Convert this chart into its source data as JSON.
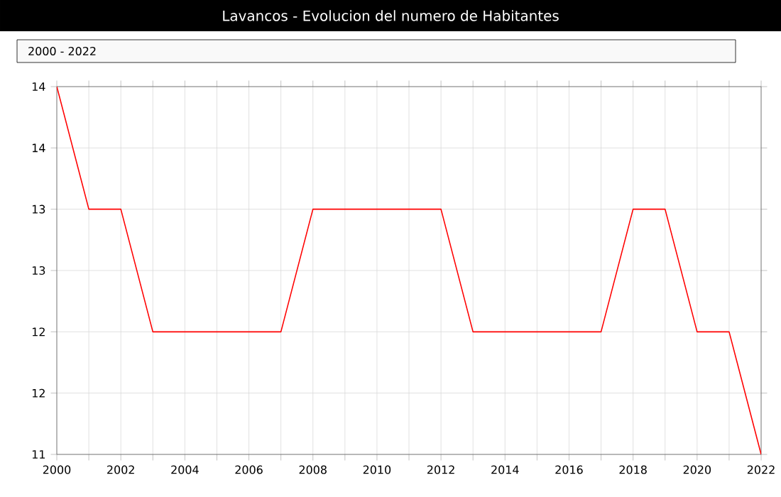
{
  "chart_data": {
    "type": "line",
    "title": "Lavancos - Evolucion del numero de Habitantes",
    "subtitle": "2000 - 2022",
    "x": [
      2000,
      2001,
      2002,
      2003,
      2004,
      2005,
      2006,
      2007,
      2008,
      2009,
      2010,
      2011,
      2012,
      2013,
      2014,
      2015,
      2016,
      2017,
      2018,
      2019,
      2020,
      2021,
      2022
    ],
    "series": [
      {
        "color": "#ff0000",
        "values": [
          14,
          13,
          13,
          12,
          12,
          12,
          12,
          12,
          13,
          13,
          13,
          13,
          13,
          12,
          12,
          12,
          12,
          12,
          13,
          13,
          12,
          12,
          11
        ]
      }
    ],
    "xlim": [
      2000,
      2022
    ],
    "xticks": [
      2000,
      {
        "value": 2001,
        "label": null
      },
      2002,
      {
        "value": 2003,
        "label": null
      },
      2004,
      {
        "value": 2005,
        "label": null
      },
      2006,
      {
        "value": 2007,
        "label": null
      },
      2008,
      {
        "value": 2009,
        "label": null
      },
      2010,
      {
        "value": 2011,
        "label": null
      },
      2012,
      {
        "value": 2013,
        "label": null
      },
      2014,
      {
        "value": 2015,
        "label": null
      },
      2016,
      {
        "value": 2017,
        "label": null
      },
      2018,
      {
        "value": 2019,
        "label": null
      },
      2020,
      {
        "value": 2021,
        "label": null
      },
      2022
    ],
    "ylim": [
      11,
      14
    ],
    "yticks": [
      11,
      {
        "value": 11.5,
        "label": "12"
      },
      12,
      {
        "value": 12.5,
        "label": "13"
      },
      13,
      {
        "value": 13.5,
        "label": "14"
      },
      14
    ],
    "grid": true,
    "marker": "none",
    "line_style": "solid"
  }
}
